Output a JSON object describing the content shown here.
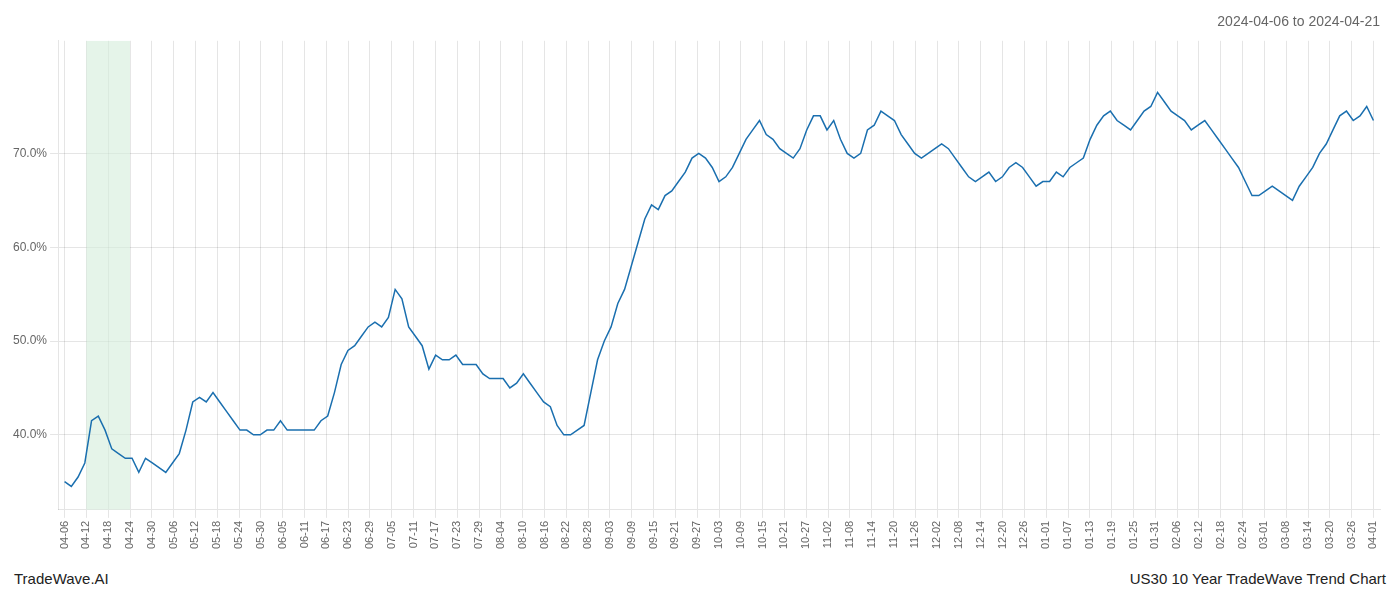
{
  "chart_data": {
    "type": "line",
    "title": "2024-04-06 to 2024-04-21",
    "annotations": [
      "TradeWave.AI",
      "US30 10 Year TradeWave Trend Chart"
    ],
    "color": "#1a6faf",
    "grid": true,
    "highlight": {
      "start": 1,
      "end": 3,
      "color": "#d4edda"
    },
    "xlim": [
      -0.3,
      60.3
    ],
    "xticks": [
      {
        "value": 0,
        "label": "04-06"
      },
      {
        "value": 1,
        "label": "04-12"
      },
      {
        "value": 2,
        "label": "04-18"
      },
      {
        "value": 3,
        "label": "04-24"
      },
      {
        "value": 4,
        "label": "04-30"
      },
      {
        "value": 5,
        "label": "05-06"
      },
      {
        "value": 6,
        "label": "05-12"
      },
      {
        "value": 7,
        "label": "05-18"
      },
      {
        "value": 8,
        "label": "05-24"
      },
      {
        "value": 9,
        "label": "05-30"
      },
      {
        "value": 10,
        "label": "06-05"
      },
      {
        "value": 11,
        "label": "06-11"
      },
      {
        "value": 12,
        "label": "06-17"
      },
      {
        "value": 13,
        "label": "06-23"
      },
      {
        "value": 14,
        "label": "06-29"
      },
      {
        "value": 15,
        "label": "07-05"
      },
      {
        "value": 16,
        "label": "07-11"
      },
      {
        "value": 17,
        "label": "07-17"
      },
      {
        "value": 18,
        "label": "07-23"
      },
      {
        "value": 19,
        "label": "07-29"
      },
      {
        "value": 20,
        "label": "08-04"
      },
      {
        "value": 21,
        "label": "08-10"
      },
      {
        "value": 22,
        "label": "08-16"
      },
      {
        "value": 23,
        "label": "08-22"
      },
      {
        "value": 24,
        "label": "08-28"
      },
      {
        "value": 25,
        "label": "09-03"
      },
      {
        "value": 26,
        "label": "09-09"
      },
      {
        "value": 27,
        "label": "09-15"
      },
      {
        "value": 28,
        "label": "09-21"
      },
      {
        "value": 29,
        "label": "09-27"
      },
      {
        "value": 30,
        "label": "10-03"
      },
      {
        "value": 31,
        "label": "10-09"
      },
      {
        "value": 32,
        "label": "10-15"
      },
      {
        "value": 33,
        "label": "10-21"
      },
      {
        "value": 34,
        "label": "10-27"
      },
      {
        "value": 35,
        "label": "11-02"
      },
      {
        "value": 36,
        "label": "11-08"
      },
      {
        "value": 37,
        "label": "11-14"
      },
      {
        "value": 38,
        "label": "11-20"
      },
      {
        "value": 39,
        "label": "11-26"
      },
      {
        "value": 40,
        "label": "12-02"
      },
      {
        "value": 41,
        "label": "12-08"
      },
      {
        "value": 42,
        "label": "12-14"
      },
      {
        "value": 43,
        "label": "12-20"
      },
      {
        "value": 44,
        "label": "12-26"
      },
      {
        "value": 45,
        "label": "01-01"
      },
      {
        "value": 46,
        "label": "01-07"
      },
      {
        "value": 47,
        "label": "01-13"
      },
      {
        "value": 48,
        "label": "01-19"
      },
      {
        "value": 49,
        "label": "01-25"
      },
      {
        "value": 50,
        "label": "01-31"
      },
      {
        "value": 51,
        "label": "02-06"
      },
      {
        "value": 52,
        "label": "02-12"
      },
      {
        "value": 53,
        "label": "02-18"
      },
      {
        "value": 54,
        "label": "02-24"
      },
      {
        "value": 55,
        "label": "03-01"
      },
      {
        "value": 56,
        "label": "03-08"
      },
      {
        "value": 57,
        "label": "03-14"
      },
      {
        "value": 58,
        "label": "03-20"
      },
      {
        "value": 59,
        "label": "03-26"
      },
      {
        "value": 60,
        "label": "04-01"
      }
    ],
    "ylim": [
      32,
      82
    ],
    "yticks": [
      {
        "value": 40,
        "label": "40.0%"
      },
      {
        "value": 50,
        "label": "50.0%"
      },
      {
        "value": 60,
        "label": "60.0%"
      },
      {
        "value": 70,
        "label": "70.0%"
      }
    ],
    "x": [
      0,
      0.3093,
      0.6186,
      0.9278,
      1.2371,
      1.5464,
      1.8557,
      2.1649,
      2.4742,
      2.7835,
      3.0928,
      3.4021,
      3.7113,
      4.0206,
      4.3299,
      4.6392,
      4.9485,
      5.2577,
      5.567,
      5.8763,
      6.1856,
      6.4948,
      6.8041,
      7.1134,
      7.4227,
      7.732,
      8.0412,
      8.3505,
      8.6598,
      8.9691,
      9.2784,
      9.5876,
      9.8969,
      10.2062,
      10.5155,
      10.8247,
      11.134,
      11.4433,
      11.7526,
      12.0619,
      12.3711,
      12.6804,
      12.9897,
      13.299,
      13.6082,
      13.9175,
      14.2268,
      14.5361,
      14.8454,
      15.1546,
      15.4639,
      15.7732,
      16.0825,
      16.3918,
      16.701,
      17.0103,
      17.3196,
      17.6289,
      17.9381,
      18.2474,
      18.5567,
      18.866,
      19.1753,
      19.4845,
      19.7938,
      20.1031,
      20.4124,
      20.7216,
      21.0309,
      21.3402,
      21.6495,
      21.9588,
      22.268,
      22.5773,
      22.8866,
      23.1959,
      23.5052,
      23.8144,
      24.1237,
      24.433,
      24.7423,
      25.0515,
      25.3608,
      25.6701,
      25.9794,
      26.2887,
      26.5979,
      26.9072,
      27.2165,
      27.5258,
      27.8351,
      28.1443,
      28.4536,
      28.7629,
      29.0722,
      29.3814,
      29.6907,
      30,
      30.3093,
      30.6186,
      30.9278,
      31.2371,
      31.5464,
      31.8557,
      32.1649,
      32.4742,
      32.7835,
      33.0928,
      33.4021,
      33.7113,
      34.0206,
      34.3299,
      34.6392,
      34.9485,
      35.2577,
      35.567,
      35.8763,
      36.1856,
      36.4948,
      36.8041,
      37.1134,
      37.4227,
      37.732,
      38.0412,
      38.3505,
      38.6598,
      38.9691,
      39.2784,
      39.5876,
      39.8969,
      40.2062,
      40.5155,
      40.8247,
      41.134,
      41.4433,
      41.7526,
      42.0619,
      42.3711,
      42.6804,
      42.9897,
      43.299,
      43.6082,
      43.9175,
      44.2268,
      44.5361,
      44.8454,
      45.1546,
      45.4639,
      45.7732,
      46.0825,
      46.3918,
      46.701,
      47.0103,
      47.3196,
      47.6289,
      47.9381,
      48.2474,
      48.5567,
      48.866,
      49.1753,
      49.4845,
      49.7938,
      50.1031,
      50.4124,
      50.7216,
      51.0309,
      51.3402,
      51.6495,
      51.9588,
      52.268,
      52.5773,
      52.8866,
      53.1959,
      53.5052,
      53.8144,
      54.1237,
      54.433,
      54.7423,
      55.0515,
      55.3608,
      55.6701,
      55.9794,
      56.2887,
      56.5979,
      56.9072,
      57.2165,
      57.5258,
      57.8351,
      58.1443,
      58.4536,
      58.7629,
      59.0722,
      59.3814,
      59.6907,
      60
    ],
    "values": [
      35.0,
      34.5,
      35.5,
      37.0,
      41.5,
      42.0,
      40.5,
      38.5,
      38.0,
      37.5,
      37.5,
      36.0,
      37.5,
      37.0,
      36.5,
      36.0,
      37.0,
      38.0,
      40.5,
      43.5,
      44.0,
      43.5,
      44.5,
      43.5,
      42.5,
      41.5,
      40.5,
      40.5,
      40.0,
      40.0,
      40.5,
      40.5,
      41.5,
      40.5,
      40.5,
      40.5,
      40.5,
      40.5,
      41.5,
      42.0,
      44.5,
      47.5,
      49.0,
      49.5,
      50.5,
      51.5,
      52.0,
      51.5,
      52.5,
      55.5,
      54.5,
      51.5,
      50.5,
      49.5,
      47.0,
      48.5,
      48.0,
      48.0,
      48.5,
      47.5,
      47.5,
      47.5,
      46.5,
      46.0,
      46.0,
      46.0,
      45.0,
      45.5,
      46.5,
      45.5,
      44.5,
      43.5,
      43.0,
      41.0,
      40.0,
      40.0,
      40.5,
      41.0,
      44.5,
      48.0,
      50.0,
      51.5,
      54.0,
      55.5,
      58.0,
      60.5,
      63.0,
      64.5,
      64.0,
      65.5,
      66.0,
      67.0,
      68.0,
      69.5,
      70.0,
      69.5,
      68.5,
      67.0,
      67.5,
      68.5,
      70.0,
      71.5,
      72.5,
      73.5,
      72.0,
      71.5,
      70.5,
      70.0,
      69.5,
      70.5,
      72.5,
      74.0,
      74.0,
      72.5,
      73.5,
      71.5,
      70.0,
      69.5,
      70.0,
      72.5,
      73.0,
      74.5,
      74.0,
      73.5,
      72.0,
      71.0,
      70.0,
      69.5,
      70.0,
      70.5,
      71.0,
      70.5,
      69.5,
      68.5,
      67.5,
      67.0,
      67.5,
      68.0,
      67.0,
      67.5,
      68.5,
      69.0,
      68.5,
      67.5,
      66.5,
      67.0,
      67.0,
      68.0,
      67.5,
      68.5,
      69.0,
      69.5,
      71.5,
      73.0,
      74.0,
      74.5,
      73.5,
      73.0,
      72.5,
      73.5,
      74.5,
      75.0,
      76.5,
      75.5,
      74.5,
      74.0,
      73.5,
      72.5,
      73.0,
      73.5,
      72.5,
      71.5,
      70.5,
      69.5,
      68.5,
      67.0,
      65.5,
      65.5,
      66.0,
      66.5,
      66.0,
      65.5,
      65.0,
      66.5,
      67.5,
      68.5,
      70.0,
      71.0,
      72.5,
      74.0,
      74.5,
      73.5,
      74.0,
      75.0,
      73.5
    ]
  }
}
